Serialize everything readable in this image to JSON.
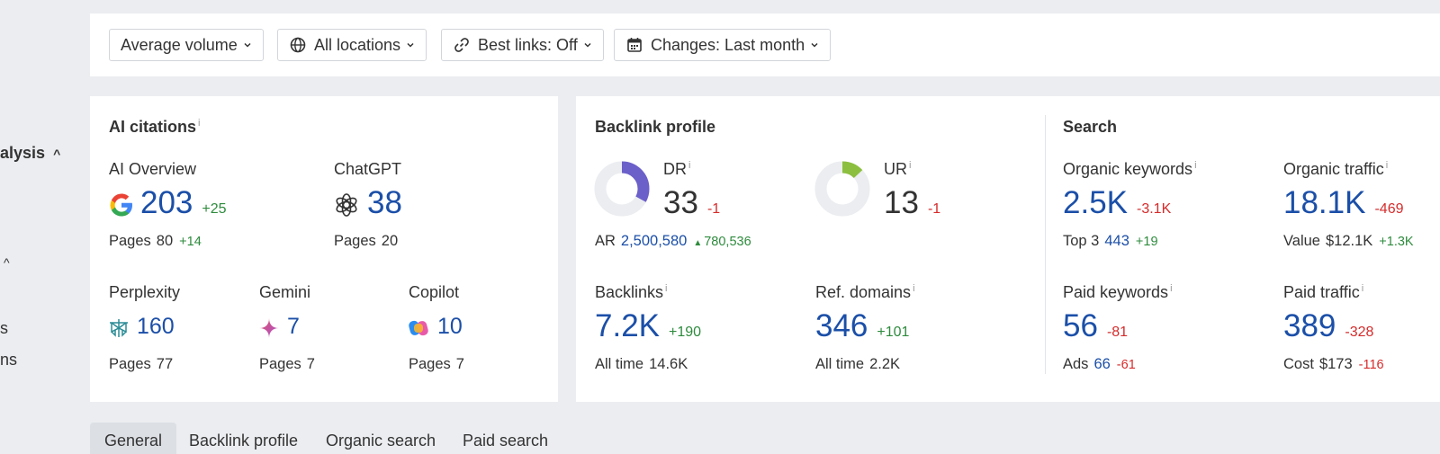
{
  "sidebar": {
    "analysis_fragment": "alysis",
    "caret_up_1": "^",
    "caret_up_2": "^",
    "frag_s": "s",
    "frag_ns": "ns"
  },
  "filters": {
    "volume": "Average volume",
    "locations": "All locations",
    "best_links": "Best links: Off",
    "changes": "Changes: Last month"
  },
  "ai_citations": {
    "title": "AI citations",
    "ai_overview": {
      "label": "AI Overview",
      "value": "203",
      "delta": "+25",
      "pages_label": "Pages",
      "pages": "80",
      "pages_delta": "+14"
    },
    "chatgpt": {
      "label": "ChatGPT",
      "value": "38",
      "pages_label": "Pages",
      "pages": "20"
    },
    "perplexity": {
      "label": "Perplexity",
      "value": "160",
      "pages_label": "Pages",
      "pages": "77"
    },
    "gemini": {
      "label": "Gemini",
      "value": "7",
      "pages_label": "Pages",
      "pages": "7"
    },
    "copilot": {
      "label": "Copilot",
      "value": "10",
      "pages_label": "Pages",
      "pages": "7"
    }
  },
  "backlink_profile": {
    "title": "Backlink profile",
    "dr": {
      "label": "DR",
      "value": "33",
      "delta": "-1",
      "fill": 0.33,
      "color": "#6b5fc9"
    },
    "ur": {
      "label": "UR",
      "value": "13",
      "delta": "-1",
      "fill": 0.13,
      "color": "#8cbf3f"
    },
    "ar": {
      "label": "AR",
      "value": "2,500,580",
      "delta": "780,536"
    },
    "backlinks": {
      "label": "Backlinks",
      "value": "7.2K",
      "delta": "+190",
      "sub_label": "All time",
      "sub_value": "14.6K"
    },
    "ref_domains": {
      "label": "Ref. domains",
      "value": "346",
      "delta": "+101",
      "sub_label": "All time",
      "sub_value": "2.2K"
    }
  },
  "search": {
    "title": "Search",
    "organic_keywords": {
      "label": "Organic keywords",
      "value": "2.5K",
      "delta": "-3.1K",
      "sub_label": "Top 3",
      "sub_value": "443",
      "sub_delta": "+19"
    },
    "organic_traffic": {
      "label": "Organic traffic",
      "value": "18.1K",
      "delta": "-469",
      "sub_label": "Value",
      "sub_value": "$12.1K",
      "sub_delta": "+1.3K"
    },
    "paid_keywords": {
      "label": "Paid keywords",
      "value": "56",
      "delta": "-81",
      "sub_label": "Ads",
      "sub_value": "66",
      "sub_delta": "-61"
    },
    "paid_traffic": {
      "label": "Paid traffic",
      "value": "389",
      "delta": "-328",
      "sub_label": "Cost",
      "sub_value": "$173",
      "sub_delta": "-116"
    }
  },
  "tabs": [
    "General",
    "Backlink profile",
    "Organic search",
    "Paid search"
  ],
  "colors": {
    "accent_blue": "#1b4fa8",
    "positive": "#2e8b3d",
    "negative": "#d62b2b"
  }
}
